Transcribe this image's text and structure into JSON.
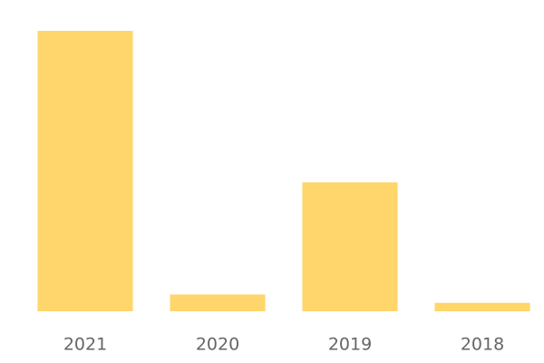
{
  "chart_data": {
    "type": "bar",
    "categories": [
      "2021",
      "2020",
      "2019",
      "2018"
    ],
    "values": [
      100,
      6,
      46,
      3
    ],
    "color": "#ffd66b",
    "ylim": [
      0,
      100
    ]
  }
}
